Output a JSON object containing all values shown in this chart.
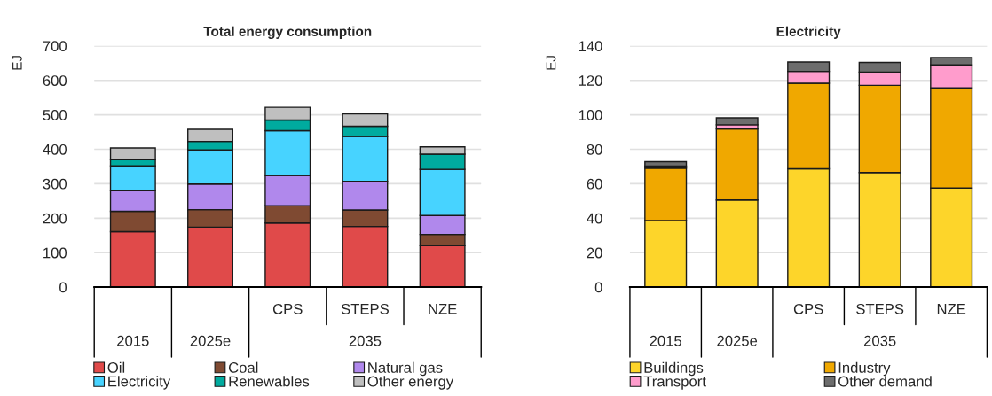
{
  "chart_data": [
    {
      "type": "bar",
      "title": "Total energy consumption",
      "ylabel": "EJ",
      "stacked": true,
      "categories": [
        "2015",
        "2025e",
        "CPS",
        "STEPS",
        "NZE"
      ],
      "series": [
        {
          "name": "Oil",
          "color": "#e04a4a",
          "values": [
            161,
            174,
            186,
            176,
            120
          ]
        },
        {
          "name": "Coal",
          "color": "#7f4a32",
          "values": [
            59,
            51,
            50,
            48,
            33
          ]
        },
        {
          "name": "Natural gas",
          "color": "#b088ec",
          "values": [
            60,
            74,
            88,
            83,
            55
          ]
        },
        {
          "name": "Electricity",
          "color": "#47d3ff",
          "values": [
            72,
            99,
            130,
            130,
            134
          ]
        },
        {
          "name": "Renewables",
          "color": "#00ab9f",
          "values": [
            18,
            25,
            31,
            30,
            44
          ]
        },
        {
          "name": "Other energy",
          "color": "#bfbfbf",
          "values": [
            34,
            35,
            37,
            36,
            21
          ]
        }
      ],
      "ylim": [
        0,
        700
      ],
      "yticks": [
        0,
        100,
        200,
        300,
        400,
        500,
        600,
        700
      ],
      "grid": "y",
      "legend": "bottom",
      "annotations": [
        "2035"
      ]
    },
    {
      "type": "bar",
      "title": "Electricity",
      "ylabel": "EJ",
      "stacked": true,
      "categories": [
        "2015",
        "2025e",
        "CPS",
        "STEPS",
        "NZE"
      ],
      "series": [
        {
          "name": "Buildings",
          "color": "#fdd52a",
          "values": [
            38.6,
            50.6,
            68.7,
            66.5,
            57.5
          ]
        },
        {
          "name": "Industry",
          "color": "#f0a800",
          "values": [
            30.5,
            41.2,
            49.6,
            50.6,
            58.1
          ]
        },
        {
          "name": "Transport",
          "color": "#ff9ccc",
          "values": [
            1.2,
            2.4,
            6.9,
            7.7,
            13.4
          ]
        },
        {
          "name": "Other demand",
          "color": "#6d6d6d",
          "values": [
            2.5,
            4.1,
            5.5,
            5.6,
            4.3
          ]
        }
      ],
      "ylim": [
        0,
        140
      ],
      "yticks": [
        0,
        20,
        40,
        60,
        80,
        100,
        120,
        140
      ],
      "grid": "y",
      "legend": "bottom",
      "annotations": [
        "2035"
      ]
    }
  ]
}
